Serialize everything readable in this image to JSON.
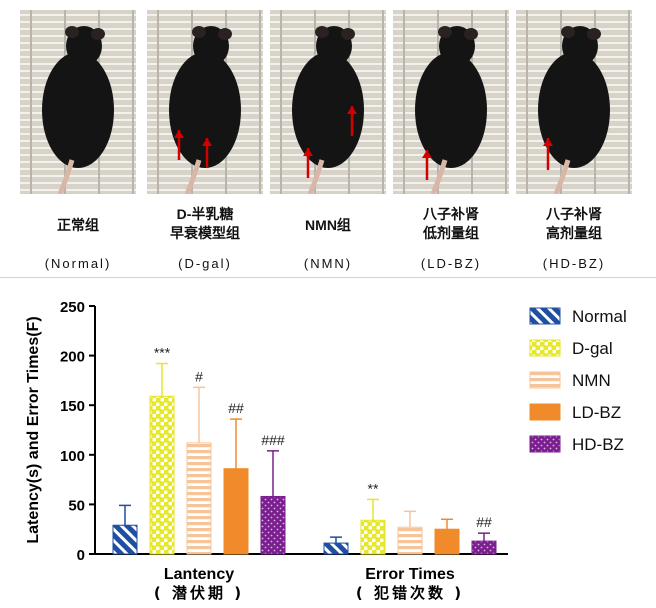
{
  "groups": [
    {
      "name_cn": "正常组",
      "name_en": "(Normal)"
    },
    {
      "name_cn": "D-半乳糖\n早衰模型组",
      "name_en": "(D-gal)"
    },
    {
      "name_cn": "NMN组",
      "name_en": "(NMN)"
    },
    {
      "name_cn": "八子补肾\n低剂量组",
      "name_en": "(LD-BZ)"
    },
    {
      "name_cn": "八子补肾\n高剂量组",
      "name_en": "(HD-BZ)"
    }
  ],
  "chart_data": {
    "type": "bar",
    "title": "",
    "ylabel": "Latency(s) and Error Times(F)",
    "xlabel": "",
    "ylim": [
      0,
      250
    ],
    "yticks": [
      0,
      50,
      100,
      150,
      200,
      250
    ],
    "categories": [
      {
        "label": "Lantency",
        "sublabel": "( 潜伏期 )"
      },
      {
        "label": "Error Times",
        "sublabel": "( 犯错次数 )"
      }
    ],
    "series": [
      {
        "name": "Normal",
        "color": "#1f4fa3",
        "pattern": "diag",
        "values": [
          29,
          11
        ],
        "errors": [
          20,
          6
        ],
        "annotations": [
          "",
          ""
        ]
      },
      {
        "name": "D-gal",
        "color": "#e6e62a",
        "pattern": "check",
        "values": [
          159,
          34
        ],
        "errors": [
          33,
          21
        ],
        "annotations": [
          "***",
          "**"
        ]
      },
      {
        "name": "NMN",
        "color": "#f7c49a",
        "pattern": "hlines",
        "values": [
          112,
          27
        ],
        "errors": [
          56,
          16
        ],
        "annotations": [
          "#",
          ""
        ]
      },
      {
        "name": "LD-BZ",
        "color": "#f08a2a",
        "pattern": "solid",
        "values": [
          86,
          25
        ],
        "errors": [
          50,
          10
        ],
        "annotations": [
          "##",
          ""
        ]
      },
      {
        "name": "HD-BZ",
        "color": "#7b1f8f",
        "pattern": "dots",
        "values": [
          58,
          13
        ],
        "errors": [
          46,
          8
        ],
        "annotations": [
          "###",
          "##"
        ]
      }
    ],
    "legend_position": "top-right"
  }
}
